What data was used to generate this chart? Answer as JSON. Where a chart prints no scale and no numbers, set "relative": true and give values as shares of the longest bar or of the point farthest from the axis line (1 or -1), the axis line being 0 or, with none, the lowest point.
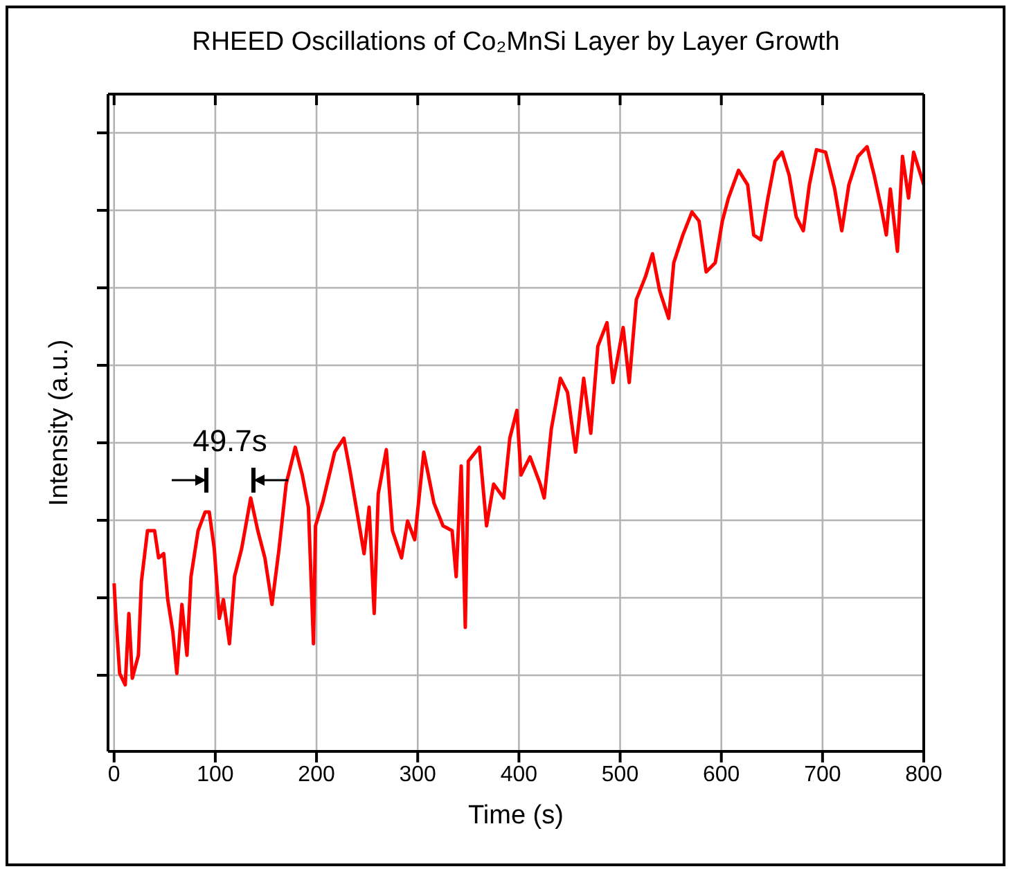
{
  "chart_data": {
    "type": "line",
    "title": "RHEED Oscillations of Co₂MnSi Layer by Layer Growth",
    "xlabel": "Time (s)",
    "ylabel": "Intensity (a.u.)",
    "relative": true,
    "grid": true,
    "xlim": [
      -6,
      800
    ],
    "xticks": [
      0,
      100,
      200,
      300,
      400,
      500,
      600,
      700,
      800
    ],
    "annotations": [
      "49.7s"
    ],
    "series": [
      {
        "color": "#ff0000",
        "x": [
          0,
          2,
          5.5,
          11,
          14.6,
          18,
          24,
          27,
          33,
          40,
          44,
          49,
          53,
          58,
          62,
          67,
          72,
          76,
          83,
          90,
          94,
          99,
          104,
          108,
          114,
          119,
          126,
          135,
          142,
          149,
          156,
          163,
          170,
          179,
          186,
          192,
          197,
          199,
          206,
          218,
          227,
          233,
          240,
          247,
          252,
          257,
          261,
          269,
          275,
          284,
          290,
          297,
          306,
          316,
          325,
          334,
          338,
          343,
          347,
          350,
          361,
          368,
          375,
          385,
          391,
          398,
          402,
          411,
          421,
          425,
          432,
          441,
          448,
          456,
          464,
          471,
          478,
          487,
          493,
          503,
          509,
          516,
          525,
          532,
          539,
          548,
          553,
          562,
          571,
          578,
          585,
          594,
          601,
          607,
          617,
          626,
          632,
          639,
          646,
          653,
          660,
          667,
          674,
          681,
          687,
          694,
          703,
          712,
          719,
          726,
          735,
          744,
          751,
          758,
          763,
          767,
          774,
          779,
          785,
          790,
          800
        ],
        "values": [
          0.278,
          0.217,
          0.129,
          0.11,
          0.228,
          0.121,
          0.159,
          0.281,
          0.365,
          0.365,
          0.32,
          0.327,
          0.251,
          0.198,
          0.129,
          0.243,
          0.159,
          0.289,
          0.365,
          0.396,
          0.396,
          0.335,
          0.22,
          0.251,
          0.178,
          0.289,
          0.335,
          0.419,
          0.365,
          0.32,
          0.243,
          0.335,
          0.442,
          0.503,
          0.457,
          0.404,
          0.178,
          0.373,
          0.411,
          0.495,
          0.518,
          0.465,
          0.396,
          0.327,
          0.404,
          0.228,
          0.426,
          0.499,
          0.365,
          0.32,
          0.381,
          0.35,
          0.495,
          0.411,
          0.373,
          0.365,
          0.289,
          0.472,
          0.205,
          0.48,
          0.503,
          0.373,
          0.442,
          0.419,
          0.518,
          0.564,
          0.457,
          0.487,
          0.442,
          0.419,
          0.533,
          0.617,
          0.594,
          0.495,
          0.617,
          0.526,
          0.67,
          0.709,
          0.61,
          0.701,
          0.61,
          0.747,
          0.785,
          0.823,
          0.762,
          0.716,
          0.808,
          0.854,
          0.892,
          0.877,
          0.793,
          0.808,
          0.877,
          0.915,
          0.961,
          0.937,
          0.854,
          0.846,
          0.915,
          0.976,
          0.991,
          0.953,
          0.884,
          0.861,
          0.937,
          0.995,
          0.991,
          0.93,
          0.861,
          0.937,
          0.984,
          1.0,
          0.953,
          0.899,
          0.854,
          0.93,
          0.827,
          0.984,
          0.915,
          0.991,
          0.937
        ]
      }
    ]
  }
}
